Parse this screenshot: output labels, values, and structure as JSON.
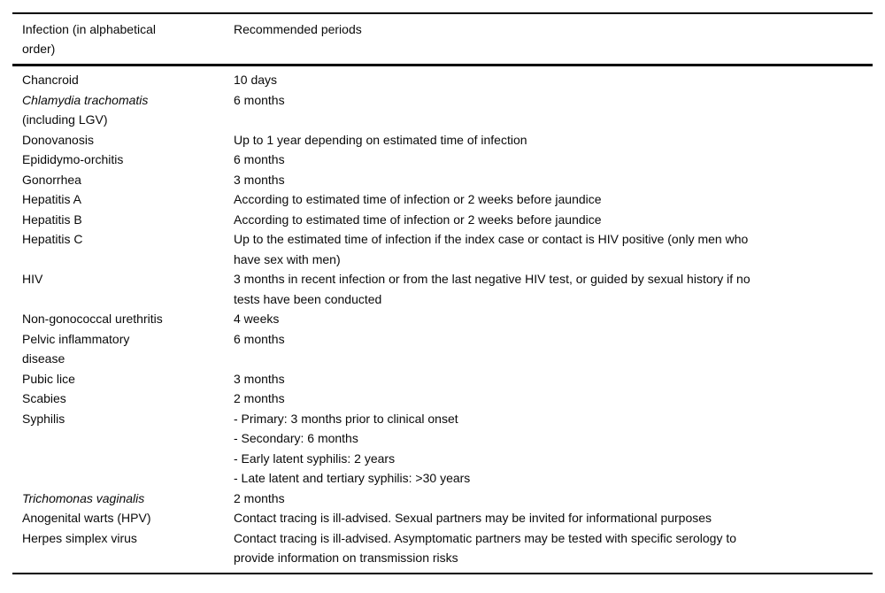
{
  "table": {
    "headers": {
      "infection": "Infection (in alphabetical\norder)",
      "periods": "Recommended periods"
    },
    "rows": [
      {
        "name": "Chancroid",
        "period": "10 days"
      },
      {
        "name": "Chlamydia trachomatis",
        "name_suffix": "(including LGV)",
        "period": "6 months"
      },
      {
        "name": "Donovanosis",
        "period": "Up to 1 year depending on estimated time of infection"
      },
      {
        "name": "Epididymo-orchitis",
        "period": "6 months"
      },
      {
        "name": "Gonorrhea",
        "period": "3 months"
      },
      {
        "name": "Hepatitis A",
        "period": "According to estimated time of infection or 2 weeks before jaundice"
      },
      {
        "name": "Hepatitis B",
        "period": "According to estimated time of infection or 2 weeks before jaundice"
      },
      {
        "name": "Hepatitis C",
        "period": "Up to the estimated time of infection if the index case or contact is HIV positive (only men who\nhave sex with men)"
      },
      {
        "name": "HIV",
        "period": "3 months in recent infection or from the last negative HIV test, or guided by sexual history if no\ntests have been conducted"
      },
      {
        "name": "Non-gonococcal urethritis",
        "period": "4 weeks"
      },
      {
        "name": "Pelvic inflammatory\ndisease",
        "period": "6 months"
      },
      {
        "name": "Pubic lice",
        "period": "3 months"
      },
      {
        "name": "Scabies",
        "period": "2 months"
      },
      {
        "name": "Syphilis",
        "period": "- Primary: 3 months prior to clinical onset\n- Secondary: 6 months\n- Early latent syphilis: 2 years\n- Late latent and tertiary syphilis: >30 years"
      },
      {
        "name": "Trichomonas vaginalis",
        "period": "2 months"
      },
      {
        "name": "Anogenital warts (HPV)",
        "period": "Contact tracing is ill-advised. Sexual partners may be invited for informational purposes"
      },
      {
        "name": "Herpes simplex virus",
        "period": "Contact tracing is ill-advised. Asymptomatic partners may be tested with specific serology to\nprovide information on transmission risks"
      }
    ]
  }
}
